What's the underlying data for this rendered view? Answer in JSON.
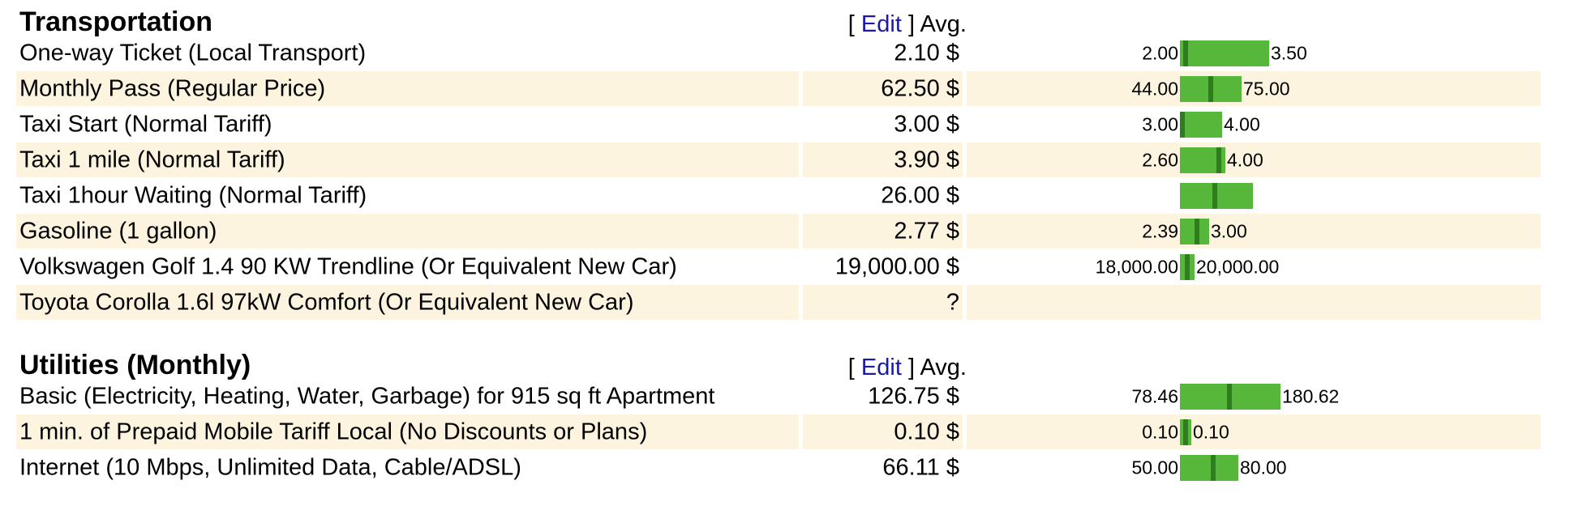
{
  "sections": [
    {
      "title": "Transportation",
      "edit_open": "[ ",
      "edit_label": "Edit",
      "edit_close": " ] ",
      "avg_label": "Avg.",
      "rows": [
        {
          "label": "One-way Ticket (Local Transport)",
          "price": "2.10 $",
          "range_min": "2.00",
          "range_max": "3.50",
          "bar_width": 110,
          "marker": 0.04
        },
        {
          "label": "Monthly Pass (Regular Price)",
          "price": "62.50 $",
          "range_min": "44.00",
          "range_max": "75.00",
          "bar_width": 76,
          "marker": 0.46
        },
        {
          "label": "Taxi Start (Normal Tariff)",
          "price": "3.00 $",
          "range_min": "3.00",
          "range_max": "4.00",
          "bar_width": 52,
          "marker": 0.0
        },
        {
          "label": "Taxi 1 mile (Normal Tariff)",
          "price": "3.90 $",
          "range_min": "2.60",
          "range_max": "4.00",
          "bar_width": 56,
          "marker": 0.8
        },
        {
          "label": "Taxi 1hour Waiting (Normal Tariff)",
          "price": "26.00 $",
          "range_min": "",
          "range_max": "",
          "bar_width": 90,
          "marker": 0.44
        },
        {
          "label": "Gasoline (1 gallon)",
          "price": "2.77 $",
          "range_min": "2.39",
          "range_max": "3.00",
          "bar_width": 36,
          "marker": 0.5
        },
        {
          "label": "Volkswagen Golf 1.4 90 KW Trendline (Or Equivalent New Car)",
          "price": "19,000.00 $",
          "range_min": "18,000.00",
          "range_max": "20,000.00",
          "bar_width": 18,
          "marker": 0.35
        },
        {
          "label": "Toyota Corolla 1.6l 97kW Comfort (Or Equivalent New Car)",
          "price": "?",
          "range_min": "",
          "range_max": "",
          "bar_width": 0,
          "marker": null
        }
      ]
    },
    {
      "title": "Utilities (Monthly)",
      "edit_open": "[ ",
      "edit_label": "Edit",
      "edit_close": " ] ",
      "avg_label": "Avg.",
      "rows": [
        {
          "label": "Basic (Electricity, Heating, Water, Garbage) for 915 sq ft Apartment",
          "price": "126.75 $",
          "range_min": "78.46",
          "range_max": "180.62",
          "bar_width": 124,
          "marker": 0.47
        },
        {
          "label": "1 min. of Prepaid Mobile Tariff Local (No Discounts or Plans)",
          "price": "0.10 $",
          "range_min": "0.10",
          "range_max": "0.10",
          "bar_width": 14,
          "marker": 0.3
        },
        {
          "label": "Internet (10 Mbps, Unlimited Data, Cable/ADSL)",
          "price": "66.11 $",
          "range_min": "50.00",
          "range_max": "80.00",
          "bar_width": 72,
          "marker": 0.53
        }
      ]
    }
  ],
  "colors": {
    "bar": "#56b73a",
    "marker": "#2e7d1e",
    "row_alt": "#fdf4df",
    "link": "#1a1aa6"
  }
}
